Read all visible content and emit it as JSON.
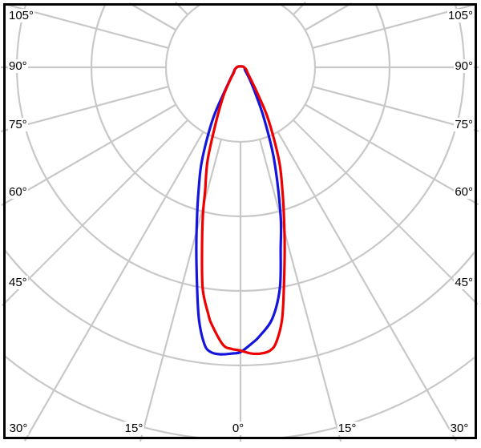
{
  "chart_data": {
    "type": "line",
    "subtype": "polar-luminous-intensity-distribution",
    "title": "",
    "legend_visible": false,
    "radial_axis": {
      "rings": 5,
      "ring_values_labeled": false,
      "min": 0,
      "max": 5
    },
    "angular_axis": {
      "unit": "degrees",
      "zero_direction": "down",
      "grid_step_deg": 15,
      "labels": [
        {
          "angle": -105,
          "text": "105°",
          "side": "left"
        },
        {
          "angle": -90,
          "text": "90°",
          "side": "left"
        },
        {
          "angle": -75,
          "text": "75°",
          "side": "left"
        },
        {
          "angle": -60,
          "text": "60°",
          "side": "left"
        },
        {
          "angle": -45,
          "text": "45°",
          "side": "left"
        },
        {
          "angle": -30,
          "text": "30°",
          "side": "bottom"
        },
        {
          "angle": -15,
          "text": "15°",
          "side": "bottom"
        },
        {
          "angle": 0,
          "text": "0°",
          "side": "bottom"
        },
        {
          "angle": 15,
          "text": "15°",
          "side": "bottom"
        },
        {
          "angle": 30,
          "text": "30°",
          "side": "bottom"
        },
        {
          "angle": 45,
          "text": "45°",
          "side": "right"
        },
        {
          "angle": 60,
          "text": "60°",
          "side": "right"
        },
        {
          "angle": 75,
          "text": "75°",
          "side": "right"
        },
        {
          "angle": 90,
          "text": "90°",
          "side": "right"
        },
        {
          "angle": 105,
          "text": "105°",
          "side": "right"
        }
      ]
    },
    "colors": {
      "grid": "#c8c8c8",
      "frame": "#000000",
      "background": "#ffffff"
    },
    "series": [
      {
        "name": "blue-curve",
        "color": "#1414dc",
        "points_angle_radius": [
          [
            -110,
            0.03
          ],
          [
            -90,
            0.05
          ],
          [
            -70,
            0.08
          ],
          [
            -50,
            0.13
          ],
          [
            -40,
            0.22
          ],
          [
            -33,
            0.4
          ],
          [
            -28,
            0.8
          ],
          [
            -22.5,
            1.35
          ],
          [
            -19,
            1.72
          ],
          [
            -16.4,
            2.06
          ],
          [
            -13.7,
            2.5
          ],
          [
            -11.1,
            3.02
          ],
          [
            -9.3,
            3.44
          ],
          [
            -7.4,
            3.75
          ],
          [
            -6,
            3.84
          ],
          [
            -4,
            3.86
          ],
          [
            -1.6,
            3.84
          ],
          [
            0,
            3.82
          ],
          [
            2.5,
            3.7
          ],
          [
            4,
            3.62
          ],
          [
            7.2,
            3.4
          ],
          [
            10.1,
            3.01
          ],
          [
            12.5,
            2.49
          ],
          [
            15.2,
            2.05
          ],
          [
            19.9,
            1.33
          ],
          [
            24.4,
            0.78
          ],
          [
            29,
            0.44
          ],
          [
            37,
            0.21
          ],
          [
            45,
            0.12
          ],
          [
            60,
            0.07
          ],
          [
            90,
            0.05
          ],
          [
            110,
            0.03
          ]
        ]
      },
      {
        "name": "red-curve",
        "color": "#ee0000",
        "points_angle_radius": [
          [
            -110,
            0.03
          ],
          [
            -90,
            0.05
          ],
          [
            -70,
            0.08
          ],
          [
            -50,
            0.12
          ],
          [
            -40,
            0.21
          ],
          [
            -31,
            0.44
          ],
          [
            -24.4,
            0.78
          ],
          [
            -19.5,
            1.32
          ],
          [
            -16,
            1.72
          ],
          [
            -14.3,
            2.04
          ],
          [
            -12,
            2.48
          ],
          [
            -9.7,
            3.01
          ],
          [
            -7.5,
            3.33
          ],
          [
            -6.3,
            3.48
          ],
          [
            -3.6,
            3.73
          ],
          [
            -1.8,
            3.78
          ],
          [
            0,
            3.8
          ],
          [
            2,
            3.84
          ],
          [
            4,
            3.85
          ],
          [
            6,
            3.82
          ],
          [
            7.4,
            3.72
          ],
          [
            9.3,
            3.44
          ],
          [
            11.1,
            3.02
          ],
          [
            13.7,
            2.5
          ],
          [
            16.4,
            2.06
          ],
          [
            19,
            1.72
          ],
          [
            22.5,
            1.35
          ],
          [
            28,
            0.8
          ],
          [
            33,
            0.42
          ],
          [
            40,
            0.22
          ],
          [
            50,
            0.13
          ],
          [
            70,
            0.08
          ],
          [
            90,
            0.05
          ],
          [
            110,
            0.03
          ]
        ]
      }
    ]
  }
}
